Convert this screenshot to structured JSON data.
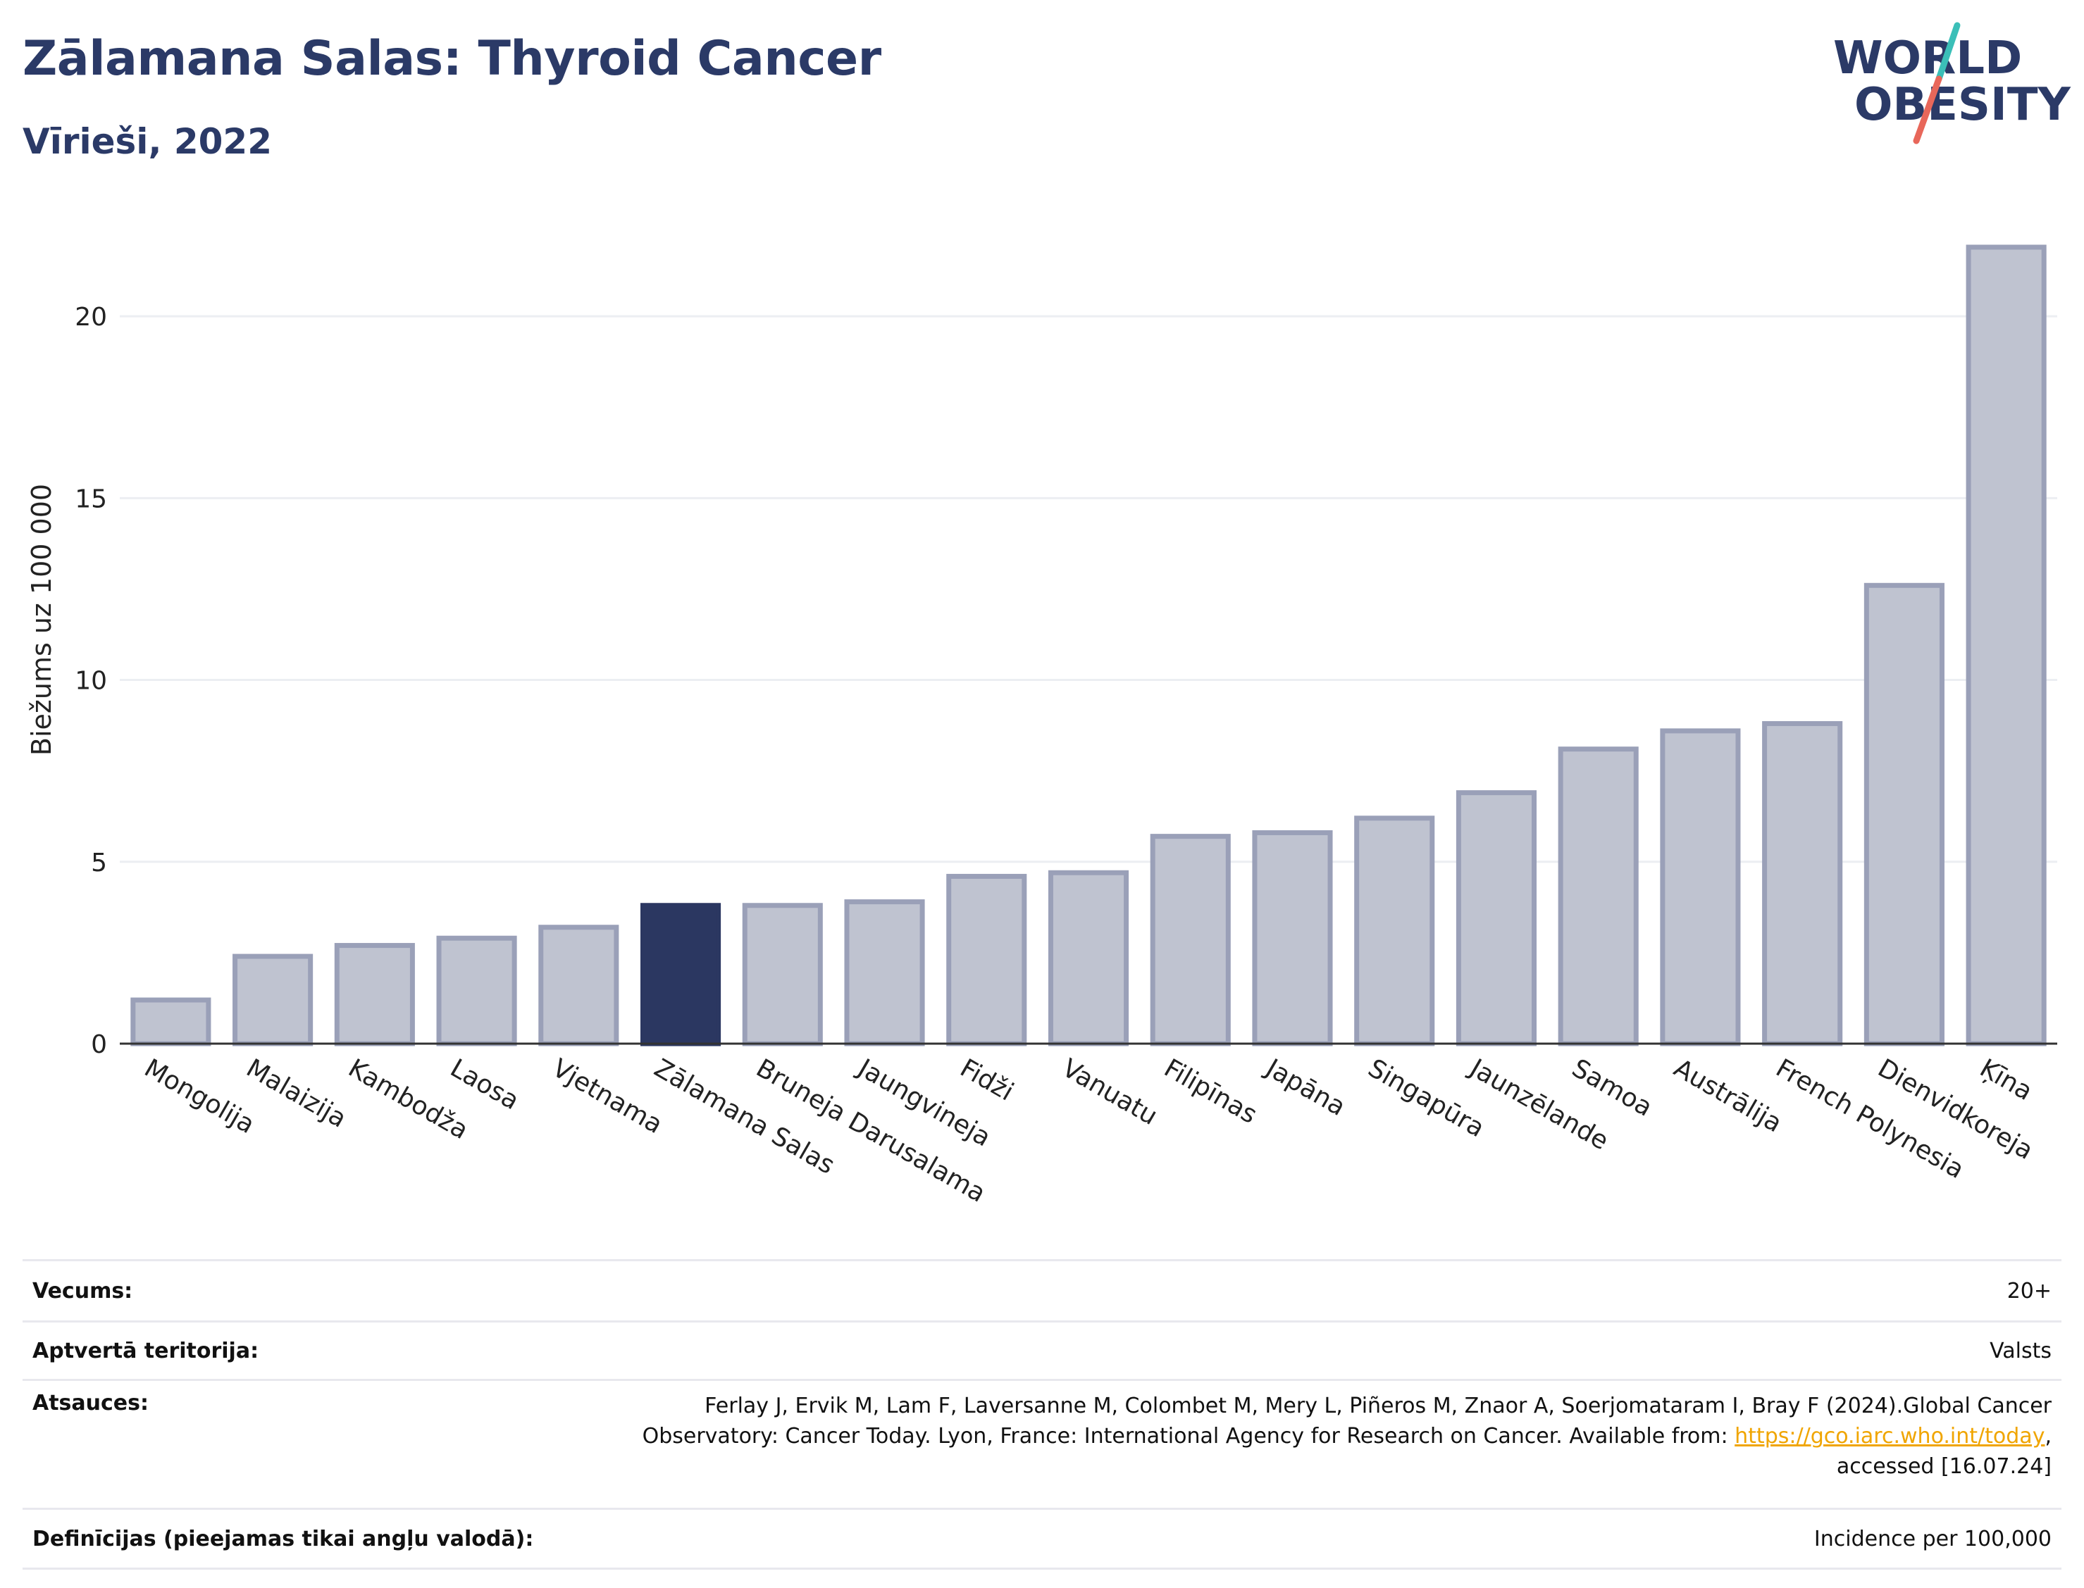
{
  "header": {
    "title": "Zālamana Salas: Thyroid Cancer",
    "subtitle": "Vīrieši, 2022"
  },
  "logo": {
    "line1": "WORLD",
    "line2": "OBESITY",
    "accent_colors": [
      "#3bbfb8",
      "#e8675a"
    ]
  },
  "chart_data": {
    "type": "bar",
    "title": "",
    "xlabel": "",
    "ylabel": "Biežums uz 100 000",
    "ylim": [
      0,
      22.5
    ],
    "yticks": [
      0,
      5,
      10,
      15,
      20
    ],
    "grid": true,
    "highlight": "Zālamana Salas",
    "colors": {
      "bar": "#bfc3d0",
      "bar_edge": "#9aa0b8",
      "highlight": "#2b3761",
      "grid": "#eceef2"
    },
    "categories": [
      "Mongolija",
      "Malaizija",
      "Kambodža",
      "Laosa",
      "Vjetnama",
      "Zālamana Salas",
      "Bruneja Darusalama",
      "Jaungvineja",
      "Fidži",
      "Vanuatu",
      "Filipīnas",
      "Japāna",
      "Singapūra",
      "Jaunzēlande",
      "Samoa",
      "Austrālija",
      "French Polynesia",
      "Dienvidkoreja",
      "Ķīna"
    ],
    "values": [
      1.2,
      2.4,
      2.7,
      2.9,
      3.2,
      3.8,
      3.8,
      3.9,
      4.6,
      4.7,
      5.7,
      5.8,
      6.2,
      6.9,
      8.1,
      8.6,
      8.8,
      12.6,
      21.9
    ]
  },
  "info": {
    "age_label": "Vecums:",
    "age_value": "20+",
    "coverage_label": "Aptvertā teritorija:",
    "coverage_value": "Valsts",
    "refs_label": "Atsauces:",
    "refs_line1": "Ferlay J, Ervik M, Lam F, Laversanne M, Colombet M, Mery L, Piñeros M, Znaor A, Soerjomataram I, Bray F (2024).Global Cancer",
    "refs_line2": "Observatory: Cancer Today. Lyon, France: International Agency for Research on Cancer. Available from: ",
    "refs_link": "https://gco.iarc.who.int/today",
    "refs_line2_end": ",",
    "refs_line3": "accessed [16.07.24]",
    "defs_label": "Definīcijas (pieejamas tikai angļu valodā):",
    "defs_value": "Incidence per 100,000"
  }
}
